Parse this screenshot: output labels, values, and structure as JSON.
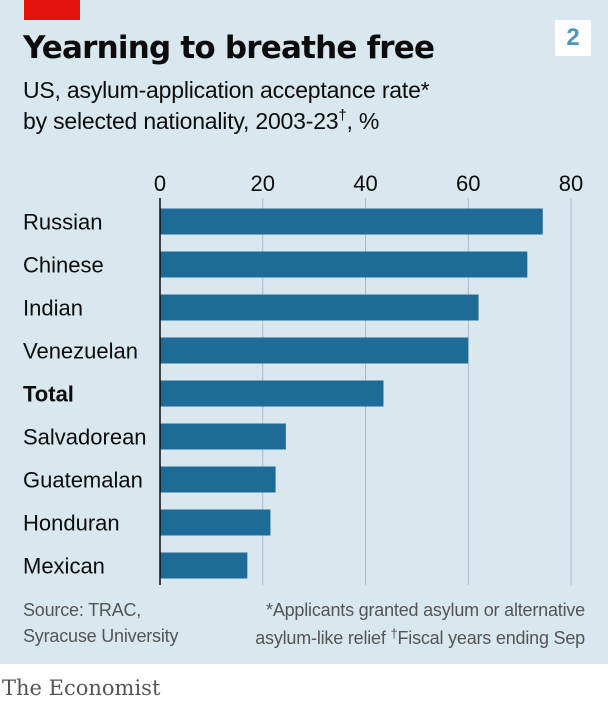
{
  "header": {
    "badge_number": "2",
    "title": "Yearning to breathe free",
    "subtitle_line1": "US, asylum-application acceptance rate*",
    "subtitle_line2_prefix": "by selected nationality, 2003-23",
    "subtitle_dagger": "†",
    "subtitle_line2_suffix": ", %"
  },
  "footer": {
    "source_line1": "Source: TRAC,",
    "source_line2": "Syracuse University",
    "note_line1": "*Applicants granted asylum or alternative",
    "note_line2_prefix": "asylum-like relief   ",
    "note_dagger": "†",
    "note_line2_suffix": "Fiscal years ending Sep"
  },
  "brand": "The Economist",
  "colors": {
    "background": "#d9e7ef",
    "bar": "#1f6b98",
    "accent_red": "#e3120b",
    "badge_text": "#4f97b8",
    "grid": "#a9bcc8"
  },
  "chart_data": {
    "type": "bar",
    "orientation": "horizontal",
    "categories": [
      "Russian",
      "Chinese",
      "Indian",
      "Venezuelan",
      "Total",
      "Salvadorean",
      "Guatemalan",
      "Honduran",
      "Mexican"
    ],
    "bold_categories": [
      "Total"
    ],
    "values": [
      74.5,
      71.5,
      62,
      60,
      43.5,
      24.5,
      22.5,
      21.5,
      17
    ],
    "xlim": [
      0,
      80
    ],
    "xticks": [
      0,
      20,
      40,
      60,
      80
    ],
    "axis_position": "top",
    "grid": true
  }
}
